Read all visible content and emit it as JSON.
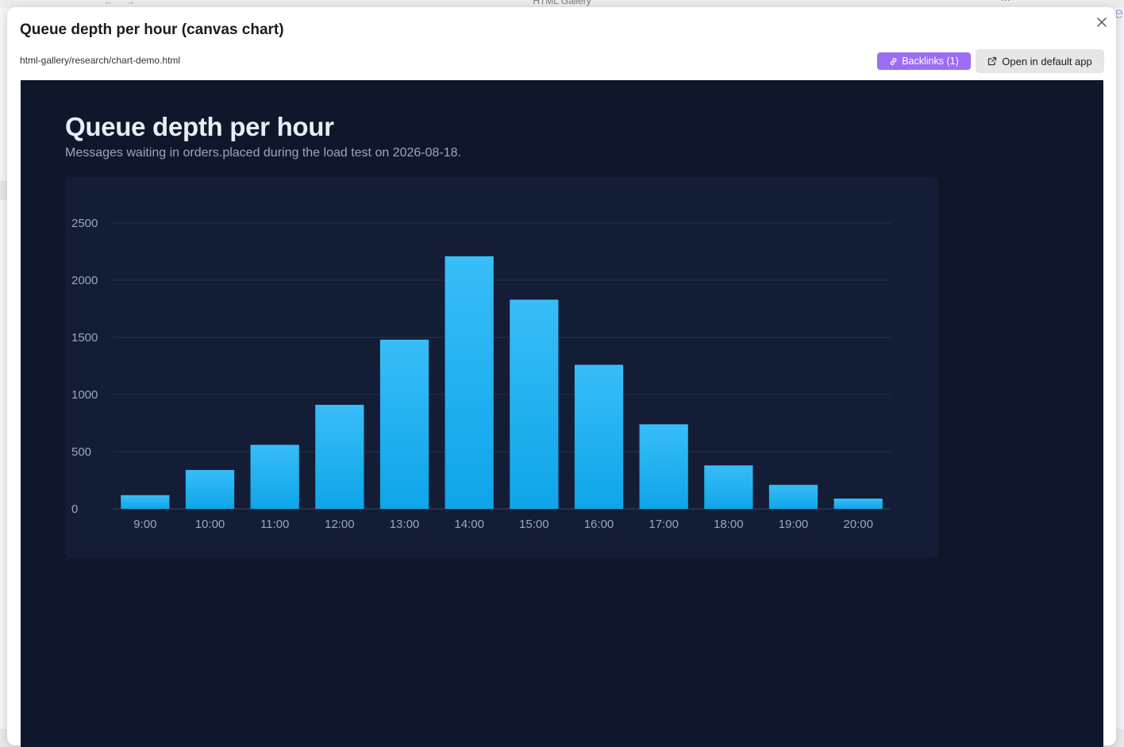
{
  "background_window": {
    "title": "HTML Gallery"
  },
  "modal": {
    "title": "Queue depth per hour (canvas chart)",
    "path": "html-gallery/research/chart-demo.html",
    "backlinks_label": "Backlinks (1)",
    "open_label": "Open in default app",
    "accent": "#9b6ef3"
  },
  "page": {
    "heading": "Queue depth per hour",
    "subtitle": "Messages waiting in orders.placed during the load test on 2026-08-18."
  },
  "chart_data": {
    "type": "bar",
    "categories": [
      "9:00",
      "10:00",
      "11:00",
      "12:00",
      "13:00",
      "14:00",
      "15:00",
      "16:00",
      "17:00",
      "18:00",
      "19:00",
      "20:00"
    ],
    "values": [
      120,
      340,
      560,
      910,
      1480,
      2210,
      1830,
      1260,
      740,
      380,
      210,
      90
    ],
    "ylim": [
      0,
      2500
    ],
    "yticks": [
      0,
      500,
      1000,
      1500,
      2000,
      2500
    ],
    "grid": true,
    "bar_color_top": "#38bdf8",
    "bar_color_bottom": "#0ea5e9"
  }
}
